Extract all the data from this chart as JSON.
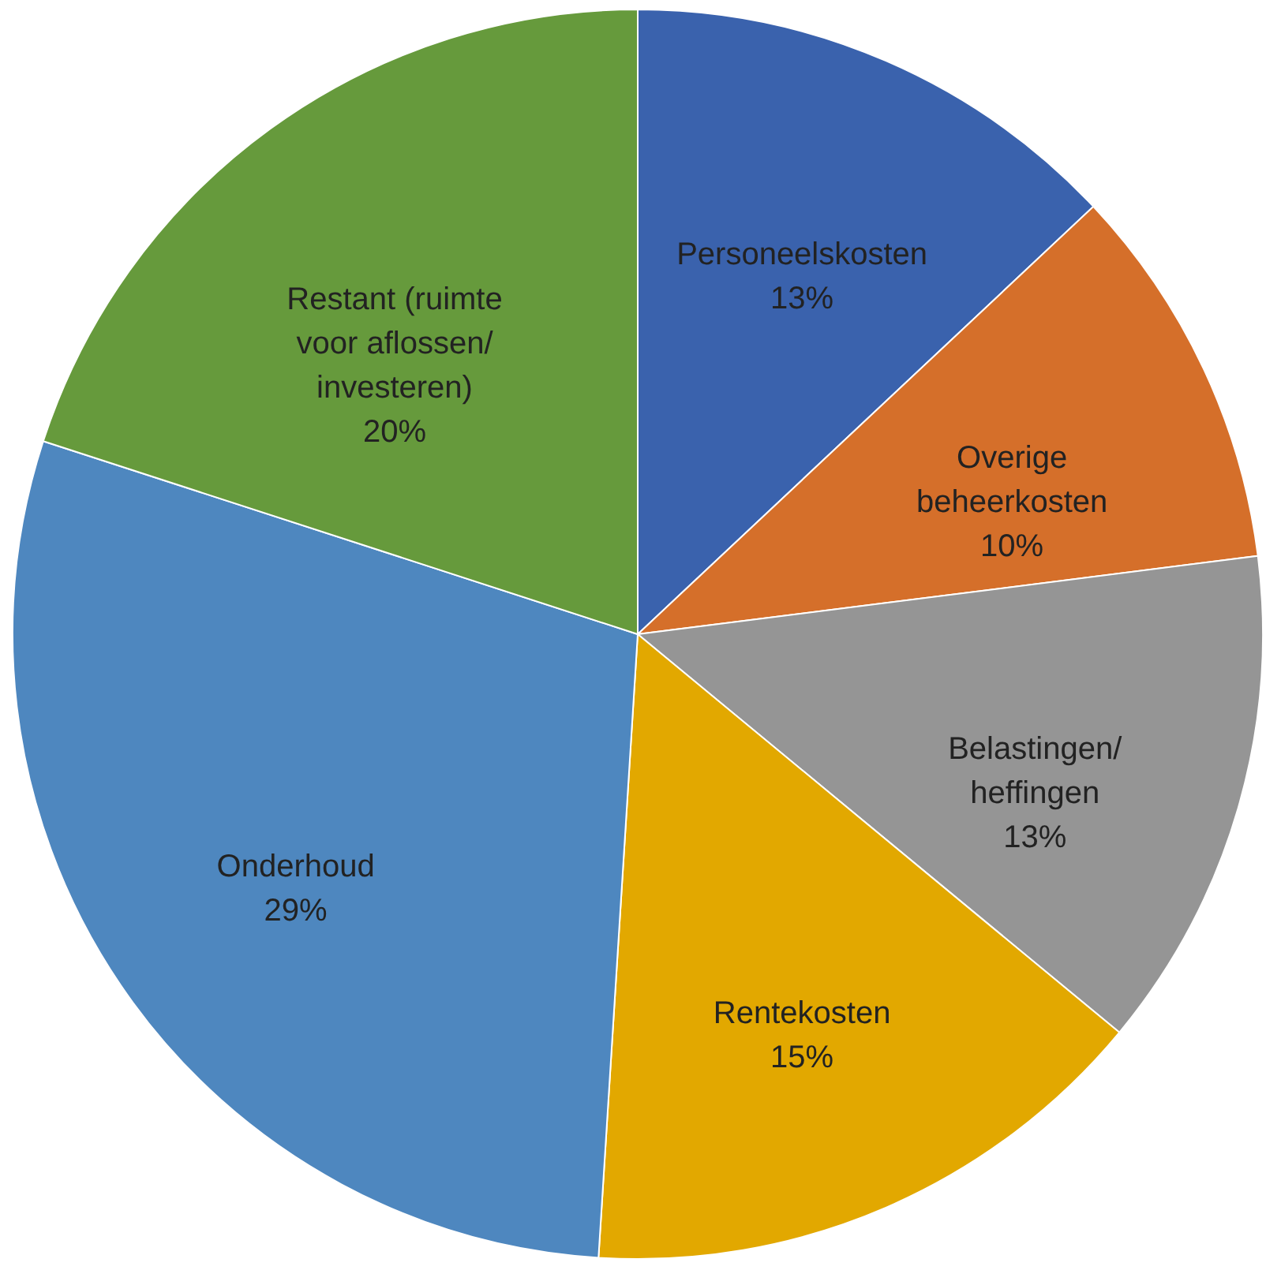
{
  "chart_data": {
    "type": "pie",
    "categories": [
      "Personeelskosten",
      "Overige beheerkosten",
      "Belastingen/ heffingen",
      "Rentekosten",
      "Onderhoud",
      "Restant (ruimte voor aflossen/ investeren)"
    ],
    "values": [
      13,
      10,
      13,
      15,
      29,
      20
    ],
    "colors": [
      "#3a62ad",
      "#d56f2a",
      "#959595",
      "#e2a800",
      "#4e87bf",
      "#669a3c"
    ],
    "value_labels": [
      "13%",
      "10%",
      "13%",
      "15%",
      "29%",
      "20%"
    ],
    "legend": false
  }
}
